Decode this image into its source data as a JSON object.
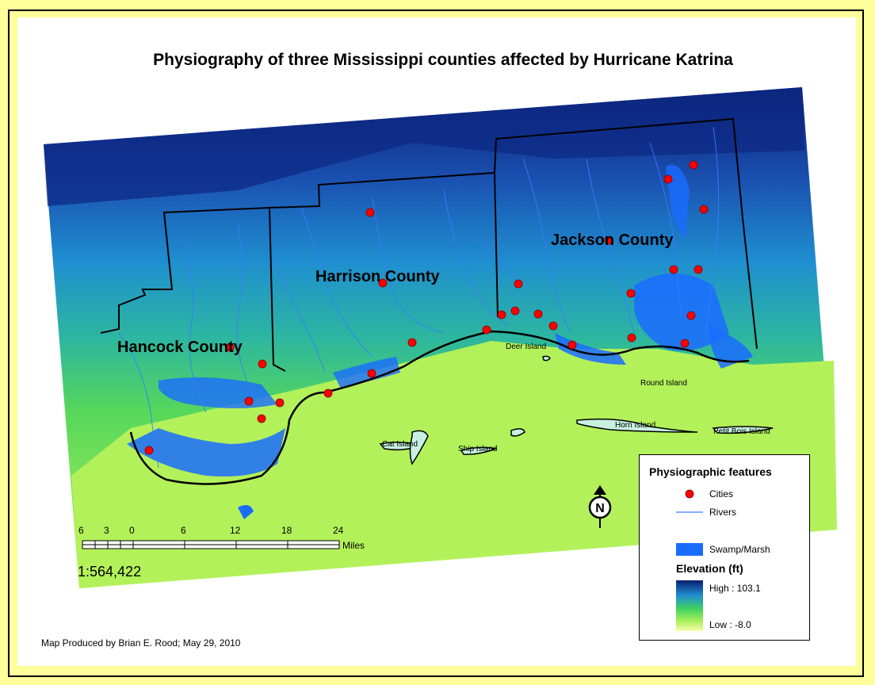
{
  "title": "Physiography of three Mississippi counties affected by Hurricane Katrina",
  "counties": [
    {
      "name": "Hancock County"
    },
    {
      "name": "Harrison County"
    },
    {
      "name": "Jackson County"
    }
  ],
  "islands": [
    {
      "name": "Deer Island"
    },
    {
      "name": "Round Island"
    },
    {
      "name": "Horn Island"
    },
    {
      "name": "Petit Bois Island"
    },
    {
      "name": "Cat Island"
    },
    {
      "name": "Ship Island"
    }
  ],
  "scale_bar": {
    "ticks": [
      "6",
      "3",
      "0",
      "6",
      "12",
      "18",
      "24"
    ],
    "unit": "Miles"
  },
  "scale_ratio": "1:564,422",
  "credit": "Map Produced by Brian E. Rood; May 29, 2010",
  "legend": {
    "title": "Physiographic features",
    "cities_label": "Cities",
    "rivers_label": "Rivers",
    "swamp_label": "Swamp/Marsh",
    "elevation_title": "Elevation (ft)",
    "high_label": "High : 103.1",
    "low_label": "Low : -8.0"
  },
  "colors": {
    "city": "#ff0000",
    "river": "#1f5fff",
    "swamp": "#1a6cff",
    "elev_high": "#0a1e6e",
    "elev_mid": "#2db6a0",
    "elev_low_green": "#66e84a",
    "elev_low": "#fbfbb0",
    "frame": "#fefe9a"
  },
  "north_arrow_label": "N"
}
